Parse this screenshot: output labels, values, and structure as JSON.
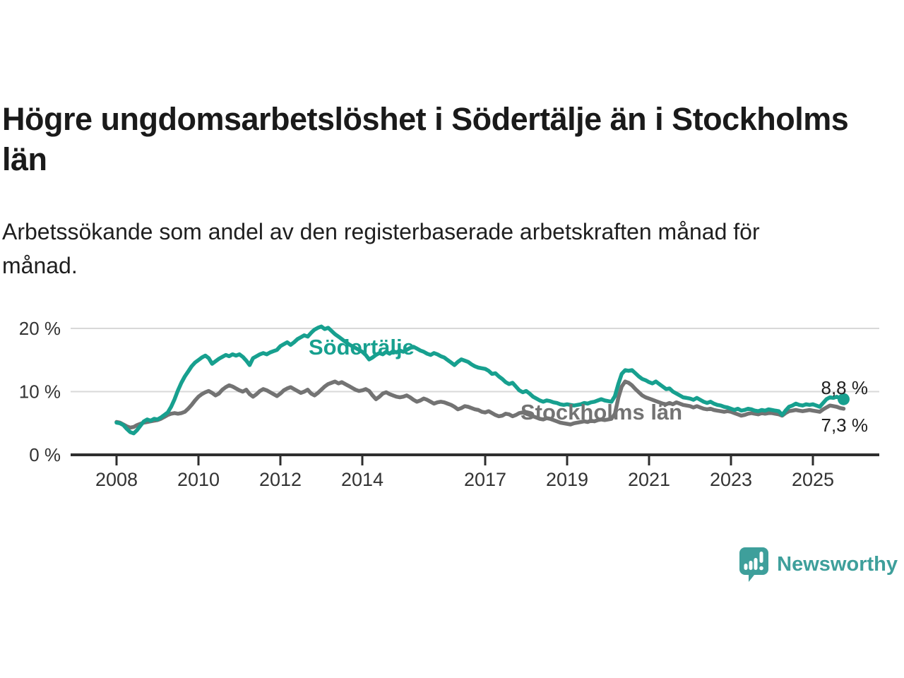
{
  "title": {
    "line1": "Högre ungdomsarbetslöshet i Södertälje än i Stockholms",
    "line2": "län"
  },
  "subtitle": {
    "line1": "Arbetssökande som andel av den registerbaserade arbetskraften månad för",
    "line2": "månad."
  },
  "branding": {
    "name": "Newsworthy",
    "logo_icon": "newsworthy-speech-bubble-bar-chart-icon",
    "color": "#3e9f9b"
  },
  "colors": {
    "accent_teal": "#17a08f",
    "series_gray": "#737373",
    "axis": "#2e2e2e",
    "gridline": "#d8d8d8",
    "text": "#1f1f1f"
  },
  "chart_data": {
    "type": "line",
    "unit": "%",
    "frequency": "monthly",
    "x_start_year": 2008,
    "x_end_label_year": 2025.75,
    "ylim": [
      0,
      21.5
    ],
    "grid": "horizontal",
    "legend_position": "inline-labels",
    "yticks": [
      {
        "value": 0,
        "label": "0 %"
      },
      {
        "value": 10,
        "label": "10 %"
      },
      {
        "value": 20,
        "label": "20 %"
      }
    ],
    "xticks": [
      {
        "year": 2008,
        "label": "2008"
      },
      {
        "year": 2010,
        "label": "2010"
      },
      {
        "year": 2012,
        "label": "2012"
      },
      {
        "year": 2014,
        "label": "2014"
      },
      {
        "year": 2017,
        "label": "2017"
      },
      {
        "year": 2019,
        "label": "2019"
      },
      {
        "year": 2021,
        "label": "2021"
      },
      {
        "year": 2023,
        "label": "2023"
      },
      {
        "year": 2025,
        "label": "2025"
      }
    ],
    "series": [
      {
        "name": "Stockholms län",
        "color": "#737373",
        "end_value": 7.3,
        "end_label": "7,3 %",
        "end_dot": false,
        "values": [
          5.2,
          5.1,
          4.8,
          4.5,
          4.3,
          4.4,
          4.7,
          4.9,
          5.1,
          5.2,
          5.3,
          5.4,
          5.5,
          5.7,
          6.0,
          6.3,
          6.5,
          6.6,
          6.5,
          6.6,
          6.8,
          7.3,
          7.9,
          8.6,
          9.2,
          9.6,
          9.9,
          10.1,
          9.8,
          9.4,
          9.7,
          10.3,
          10.7,
          11.0,
          10.8,
          10.5,
          10.2,
          10.0,
          10.3,
          9.6,
          9.2,
          9.6,
          10.1,
          10.4,
          10.2,
          9.9,
          9.6,
          9.3,
          9.7,
          10.2,
          10.5,
          10.7,
          10.4,
          10.1,
          9.8,
          10.0,
          10.3,
          9.7,
          9.4,
          9.8,
          10.3,
          10.8,
          11.2,
          11.4,
          11.6,
          11.3,
          11.5,
          11.2,
          10.9,
          10.6,
          10.3,
          10.1,
          10.2,
          10.4,
          10.1,
          9.4,
          8.8,
          9.2,
          9.7,
          9.9,
          9.6,
          9.4,
          9.2,
          9.1,
          9.2,
          9.4,
          9.1,
          8.7,
          8.4,
          8.6,
          8.9,
          8.7,
          8.4,
          8.1,
          8.3,
          8.4,
          8.3,
          8.1,
          7.9,
          7.6,
          7.2,
          7.4,
          7.7,
          7.6,
          7.4,
          7.2,
          7.1,
          6.8,
          6.7,
          6.9,
          6.6,
          6.3,
          6.1,
          6.2,
          6.5,
          6.4,
          6.1,
          6.3,
          6.6,
          6.7,
          6.5,
          6.3,
          6.1,
          5.9,
          5.7,
          5.6,
          5.8,
          5.7,
          5.5,
          5.3,
          5.1,
          5.0,
          4.9,
          4.8,
          5.0,
          5.1,
          5.2,
          5.3,
          5.2,
          5.4,
          5.3,
          5.5,
          5.6,
          5.5,
          5.6,
          5.7,
          6.5,
          9.0,
          10.8,
          11.6,
          11.4,
          11.0,
          10.4,
          9.9,
          9.4,
          9.1,
          8.9,
          8.7,
          8.5,
          8.3,
          8.1,
          8.0,
          8.2,
          8.0,
          8.3,
          8.1,
          7.9,
          7.8,
          7.7,
          7.5,
          7.7,
          7.5,
          7.3,
          7.2,
          7.3,
          7.1,
          7.0,
          6.9,
          6.8,
          6.9,
          6.8,
          6.6,
          6.4,
          6.2,
          6.3,
          6.5,
          6.6,
          6.5,
          6.4,
          6.6,
          6.5,
          6.6,
          6.6,
          6.5,
          6.4,
          6.2,
          6.6,
          6.9,
          7.0,
          7.1,
          7.0,
          6.9,
          7.0,
          7.1,
          7.0,
          6.9,
          6.8,
          7.2,
          7.5,
          7.8,
          7.7,
          7.6,
          7.4,
          7.3
        ]
      },
      {
        "name": "Södertälje",
        "color": "#17a08f",
        "end_value": 8.8,
        "end_label": "8,8 %",
        "end_dot": true,
        "values": [
          5.1,
          5.0,
          4.7,
          4.1,
          3.6,
          3.4,
          3.9,
          4.6,
          5.3,
          5.6,
          5.4,
          5.7,
          5.6,
          5.9,
          6.3,
          6.7,
          7.6,
          8.8,
          10.2,
          11.4,
          12.4,
          13.2,
          14.0,
          14.6,
          15.0,
          15.4,
          15.7,
          15.3,
          14.4,
          14.8,
          15.2,
          15.5,
          15.8,
          15.6,
          15.9,
          15.7,
          15.9,
          15.5,
          14.9,
          14.2,
          15.3,
          15.6,
          15.9,
          16.1,
          15.9,
          16.2,
          16.4,
          16.6,
          17.2,
          17.5,
          17.8,
          17.4,
          17.8,
          18.3,
          18.6,
          18.9,
          18.7,
          19.3,
          19.8,
          20.1,
          20.3,
          19.9,
          20.1,
          19.6,
          19.1,
          18.7,
          18.3,
          17.9,
          17.5,
          17.2,
          16.9,
          16.6,
          16.3,
          15.8,
          15.1,
          15.4,
          15.8,
          16.1,
          15.9,
          16.3,
          16.0,
          16.4,
          16.2,
          16.5,
          16.3,
          16.6,
          16.9,
          17.1,
          16.8,
          16.5,
          16.3,
          16.0,
          15.8,
          16.1,
          15.9,
          15.6,
          15.4,
          15.0,
          14.6,
          14.2,
          14.7,
          15.1,
          14.9,
          14.7,
          14.3,
          14.0,
          13.8,
          13.7,
          13.6,
          13.3,
          12.8,
          12.9,
          12.4,
          12.0,
          11.5,
          11.2,
          11.4,
          10.8,
          10.2,
          9.9,
          10.1,
          9.7,
          9.2,
          8.9,
          8.6,
          8.4,
          8.6,
          8.5,
          8.3,
          8.2,
          8.0,
          7.9,
          8.0,
          7.9,
          7.8,
          7.9,
          8.0,
          8.2,
          8.1,
          8.3,
          8.4,
          8.6,
          8.8,
          8.6,
          8.5,
          8.4,
          9.3,
          11.2,
          12.8,
          13.4,
          13.3,
          13.4,
          12.9,
          12.4,
          12.0,
          11.8,
          11.5,
          11.3,
          11.6,
          11.2,
          10.8,
          10.4,
          10.5,
          10.0,
          9.7,
          9.4,
          9.1,
          9.0,
          8.9,
          8.7,
          9.0,
          8.7,
          8.4,
          8.2,
          8.4,
          8.1,
          7.9,
          7.8,
          7.6,
          7.5,
          7.3,
          7.1,
          7.3,
          7.0,
          7.1,
          7.3,
          7.2,
          7.0,
          6.9,
          7.1,
          7.0,
          7.2,
          7.1,
          7.0,
          6.9,
          6.3,
          7.0,
          7.6,
          7.8,
          8.1,
          7.9,
          7.8,
          8.0,
          7.9,
          8.0,
          7.8,
          7.6,
          8.2,
          8.8,
          9.1,
          9.0,
          9.2,
          8.9,
          8.8
        ]
      }
    ]
  }
}
